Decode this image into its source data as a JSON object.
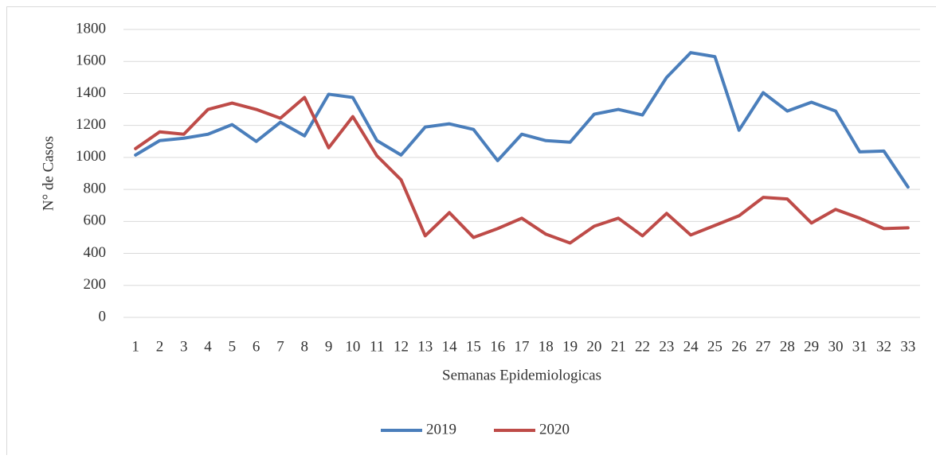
{
  "chart_data": {
    "type": "line",
    "x_label": "Semanas Epidemiologicas",
    "y_label": "N° de Casos",
    "categories": [
      "1",
      "2",
      "3",
      "4",
      "5",
      "6",
      "7",
      "8",
      "9",
      "10",
      "11",
      "12",
      "13",
      "14",
      "15",
      "16",
      "17",
      "18",
      "19",
      "20",
      "21",
      "22",
      "23",
      "24",
      "25",
      "26",
      "27",
      "28",
      "29",
      "30",
      "31",
      "32",
      "33"
    ],
    "series": [
      {
        "name": "2019",
        "color": "#4a7ebb",
        "values": [
          1015,
          1105,
          1120,
          1145,
          1205,
          1100,
          1220,
          1135,
          1395,
          1375,
          1105,
          1015,
          1190,
          1210,
          1175,
          980,
          1145,
          1105,
          1095,
          1270,
          1300,
          1265,
          1500,
          1655,
          1630,
          1170,
          1405,
          1290,
          1345,
          1290,
          1035,
          1040,
          815
        ]
      },
      {
        "name": "2020",
        "color": "#be4b48",
        "values": [
          1055,
          1160,
          1145,
          1300,
          1340,
          1300,
          1245,
          1375,
          1060,
          1255,
          1010,
          860,
          510,
          655,
          500,
          555,
          620,
          520,
          465,
          570,
          620,
          510,
          650,
          515,
          575,
          635,
          750,
          740,
          590,
          675,
          620,
          555,
          560
        ]
      }
    ],
    "ylim": [
      0,
      1800
    ],
    "yticks": [
      0,
      200,
      400,
      600,
      800,
      1000,
      1200,
      1400,
      1600,
      1800
    ],
    "grid": true,
    "legend": "bottom"
  }
}
